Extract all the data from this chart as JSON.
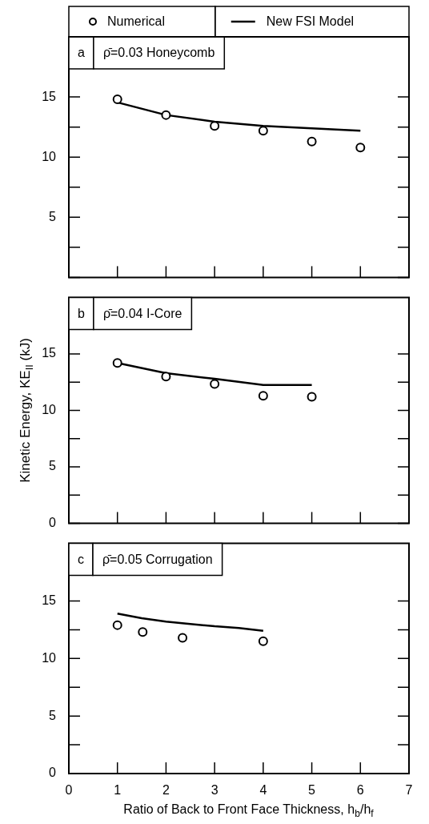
{
  "chart_data": [
    {
      "type": "line",
      "xlim": [
        0,
        7
      ],
      "xticks": [
        0,
        1,
        2,
        3,
        4,
        5,
        6,
        7
      ],
      "ylim": [
        0,
        20
      ],
      "yticks": [
        {
          "value": 0,
          "label": null
        },
        {
          "value": 2.5,
          "label": null
        },
        5,
        {
          "value": 7.5,
          "label": null
        },
        10,
        {
          "value": 12.5,
          "label": null
        },
        15
      ],
      "tick_labels": "y",
      "legend": "top",
      "annotations": [
        "a",
        "ρ̄=0.03 Honeycomb"
      ],
      "series": [
        {
          "name": "Numerical",
          "type": "scatter",
          "marker": "circle",
          "color": "#000000",
          "x": [
            1,
            2,
            3,
            4,
            5,
            6
          ],
          "values": [
            14.8,
            13.5,
            12.6,
            12.2,
            11.3,
            10.8
          ]
        },
        {
          "name": "New FSI Model",
          "type": "line",
          "marker": "none",
          "color": "#000000",
          "x": [
            1,
            2,
            3,
            4,
            5,
            6
          ],
          "values": [
            14.55,
            13.5,
            12.95,
            12.6,
            12.4,
            12.2
          ]
        }
      ]
    },
    {
      "type": "line",
      "xlim": [
        0,
        7
      ],
      "xticks": [
        0,
        1,
        2,
        3,
        4,
        5,
        6,
        7
      ],
      "ylim": [
        0,
        20
      ],
      "yticks": [
        0,
        {
          "value": 2.5,
          "label": null
        },
        5,
        {
          "value": 7.5,
          "label": null
        },
        10,
        {
          "value": 12.5,
          "label": null
        },
        15
      ],
      "tick_labels": "y",
      "ylabel": "Kinetic Energy, KE$_{II}$ (kJ)",
      "annotations": [
        "b",
        "ρ̄=0.04 I-Core"
      ],
      "series": [
        {
          "type": "scatter",
          "marker": "circle",
          "color": "#000000",
          "x": [
            1,
            2,
            3,
            4,
            5
          ],
          "values": [
            14.2,
            13.0,
            12.35,
            11.3,
            11.2
          ]
        },
        {
          "type": "line",
          "marker": "none",
          "color": "#000000",
          "x": [
            1,
            2,
            3,
            4,
            5
          ],
          "values": [
            14.2,
            13.3,
            12.8,
            12.25,
            12.25
          ]
        }
      ]
    },
    {
      "type": "line",
      "xlim": [
        0,
        7
      ],
      "xticks": [
        0,
        1,
        2,
        3,
        4,
        5,
        6,
        7
      ],
      "ylim": [
        0,
        20
      ],
      "yticks": [
        0,
        {
          "value": 2.5,
          "label": null
        },
        5,
        {
          "value": 7.5,
          "label": null
        },
        10,
        {
          "value": 12.5,
          "label": null
        },
        15
      ],
      "xlabel": "Ratio of Back to Front Face Thickness, h$_{b}$/h$_{f}$",
      "annotations": [
        "c",
        "ρ̄=0.05 Corrugation"
      ],
      "series": [
        {
          "type": "scatter",
          "marker": "circle",
          "color": "#000000",
          "x": [
            1,
            1.52,
            2.34,
            4
          ],
          "values": [
            12.9,
            12.3,
            11.8,
            11.5
          ]
        },
        {
          "type": "line",
          "marker": "none",
          "color": "#000000",
          "x": [
            1,
            1.5,
            2,
            2.5,
            3,
            3.5,
            4
          ],
          "values": [
            13.9,
            13.5,
            13.2,
            13.0,
            12.8,
            12.65,
            12.4
          ]
        }
      ]
    }
  ]
}
